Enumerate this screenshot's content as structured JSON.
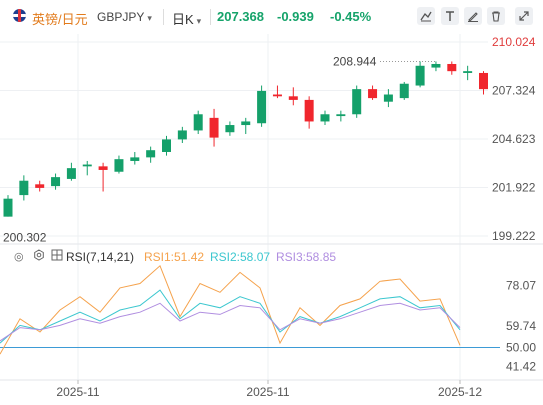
{
  "header": {
    "name": "英镑/日元",
    "ticker": "GBPJPY",
    "ticker_caret": "▾",
    "period": "日K",
    "period_caret": "▾",
    "price": "207.368",
    "change": "-0.939",
    "change_pct": "-0.45%",
    "tools": [
      "line-tool-icon",
      "text-tool-icon",
      "pen-tool-icon",
      "delete-icon",
      "fullscreen-icon"
    ]
  },
  "rsi": {
    "title": "RSI(7,14,21)",
    "rsi1_label": "RSI1:51.42",
    "rsi2_label": "RSI2:58.07",
    "rsi3_label": "RSI3:58.85",
    "colors": {
      "rsi1": "#f5a24c",
      "rsi2": "#3cc7cf",
      "rsi3": "#b08ee0",
      "level": "#3d9bd6"
    }
  },
  "chart_data": [
    {
      "type": "candlestick",
      "y_axis_labels": [
        "210.024",
        "207.324",
        "204.623",
        "201.922",
        "199.222"
      ],
      "ylim": [
        199.222,
        210.024
      ],
      "x_axis_labels": [
        "2025-11",
        "2025-11",
        "2025-12"
      ],
      "annotations": {
        "high": "208.944",
        "low": "200.302"
      },
      "colors": {
        "up": "#14a06a",
        "down": "#f0262d"
      },
      "candles": [
        {
          "o": 200.3,
          "h": 201.5,
          "l": 200.3,
          "c": 201.3
        },
        {
          "o": 201.5,
          "h": 202.6,
          "l": 201.2,
          "c": 202.3
        },
        {
          "o": 202.1,
          "h": 202.3,
          "l": 201.7,
          "c": 201.9
        },
        {
          "o": 202.0,
          "h": 202.7,
          "l": 201.8,
          "c": 202.5
        },
        {
          "o": 202.4,
          "h": 203.3,
          "l": 202.3,
          "c": 203.0
        },
        {
          "o": 203.1,
          "h": 203.4,
          "l": 202.6,
          "c": 203.2
        },
        {
          "o": 203.1,
          "h": 203.3,
          "l": 201.7,
          "c": 202.9
        },
        {
          "o": 202.8,
          "h": 203.7,
          "l": 202.7,
          "c": 203.5
        },
        {
          "o": 203.4,
          "h": 203.9,
          "l": 203.2,
          "c": 203.6
        },
        {
          "o": 203.6,
          "h": 204.2,
          "l": 203.3,
          "c": 204.0
        },
        {
          "o": 203.9,
          "h": 204.8,
          "l": 203.7,
          "c": 204.6
        },
        {
          "o": 204.6,
          "h": 205.3,
          "l": 204.4,
          "c": 205.1
        },
        {
          "o": 205.1,
          "h": 206.2,
          "l": 204.9,
          "c": 206.0
        },
        {
          "o": 205.8,
          "h": 206.3,
          "l": 204.2,
          "c": 204.7
        },
        {
          "o": 205.0,
          "h": 205.6,
          "l": 204.8,
          "c": 205.4
        },
        {
          "o": 205.4,
          "h": 205.8,
          "l": 204.9,
          "c": 205.6
        },
        {
          "o": 205.5,
          "h": 207.6,
          "l": 205.3,
          "c": 207.3
        },
        {
          "o": 207.1,
          "h": 207.6,
          "l": 206.9,
          "c": 207.0
        },
        {
          "o": 207.0,
          "h": 207.5,
          "l": 206.5,
          "c": 206.8
        },
        {
          "o": 206.8,
          "h": 207.0,
          "l": 205.2,
          "c": 205.6
        },
        {
          "o": 205.6,
          "h": 206.2,
          "l": 205.4,
          "c": 206.0
        },
        {
          "o": 205.9,
          "h": 206.2,
          "l": 205.6,
          "c": 206.0
        },
        {
          "o": 206.0,
          "h": 207.6,
          "l": 205.8,
          "c": 207.4
        },
        {
          "o": 207.4,
          "h": 207.6,
          "l": 206.8,
          "c": 206.9
        },
        {
          "o": 206.7,
          "h": 207.4,
          "l": 206.4,
          "c": 207.1
        },
        {
          "o": 206.9,
          "h": 207.8,
          "l": 206.8,
          "c": 207.7
        },
        {
          "o": 207.6,
          "h": 208.94,
          "l": 207.5,
          "c": 208.7
        },
        {
          "o": 208.6,
          "h": 208.94,
          "l": 208.4,
          "c": 208.8
        },
        {
          "o": 208.8,
          "h": 208.94,
          "l": 208.2,
          "c": 208.4
        },
        {
          "o": 208.3,
          "h": 208.7,
          "l": 207.9,
          "c": 208.4
        },
        {
          "o": 208.3,
          "h": 208.4,
          "l": 207.1,
          "c": 207.4
        }
      ]
    },
    {
      "type": "line",
      "y_axis_labels": [
        "78.07",
        "59.74",
        "50.00",
        "41.42"
      ],
      "ylim": [
        38.0,
        86.0
      ],
      "level": 50.0,
      "series": [
        {
          "name": "RSI1",
          "values": [
            47,
            63,
            57,
            67,
            73,
            66,
            77,
            79,
            87,
            64,
            79,
            75,
            84,
            77,
            52,
            68,
            60,
            69,
            72,
            80,
            81,
            71,
            72,
            51
          ]
        },
        {
          "name": "RSI2",
          "values": [
            52,
            60,
            58,
            62,
            66,
            62,
            67,
            69,
            76,
            63,
            70,
            68,
            73,
            70,
            57,
            64,
            61,
            64,
            68,
            72,
            73,
            68,
            69,
            58
          ]
        },
        {
          "name": "RSI3",
          "values": [
            53,
            59,
            58,
            60,
            63,
            61,
            64,
            66,
            70,
            62,
            66,
            65,
            69,
            68,
            58,
            63,
            61,
            63,
            66,
            69,
            70,
            67,
            68,
            59
          ]
        }
      ]
    }
  ]
}
